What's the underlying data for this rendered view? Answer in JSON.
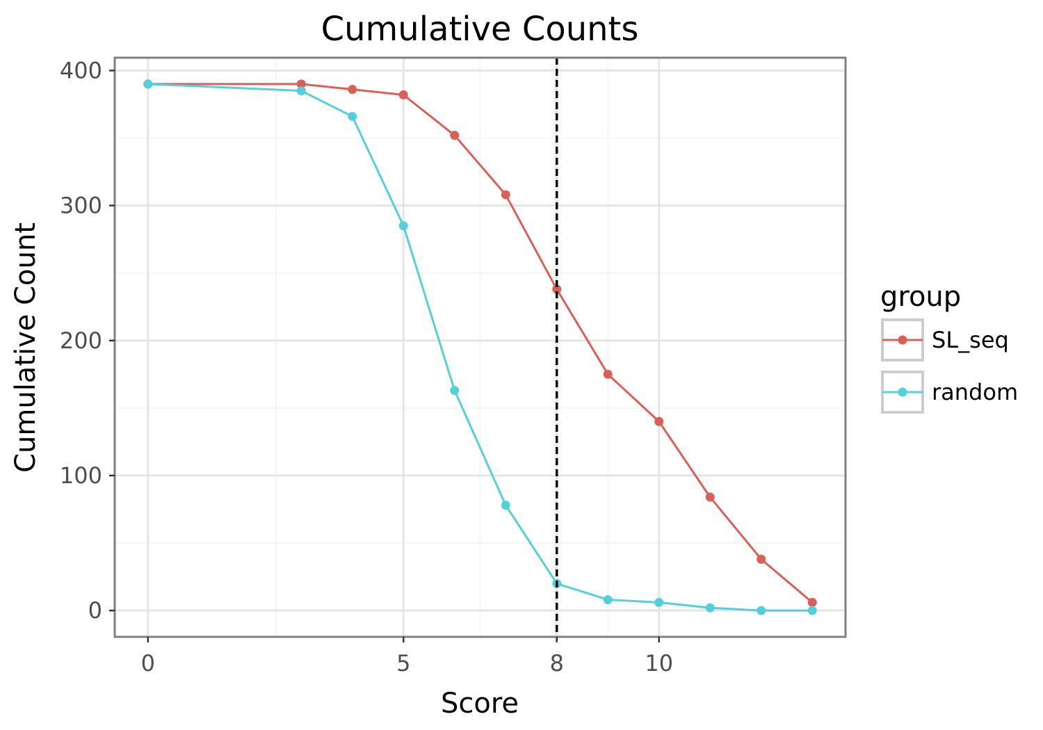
{
  "chart_data": {
    "type": "line",
    "title": "Cumulative Counts",
    "xlabel": "Score",
    "ylabel": "Cumulative Count",
    "xlim": [
      -0.65,
      13.65
    ],
    "ylim": [
      -19.5,
      409.5
    ],
    "x_ticks": [
      0,
      5,
      8,
      10
    ],
    "y_ticks": [
      0,
      100,
      200,
      300,
      400
    ],
    "x_tick_labels": [
      "0",
      "5",
      "8",
      "10"
    ],
    "y_tick_labels": [
      "0",
      "100",
      "200",
      "300",
      "400"
    ],
    "reference_line": {
      "x": 8,
      "style": "dashed",
      "color": "#000000"
    },
    "grid": true,
    "legend": {
      "title": "group",
      "position": "right",
      "entries": [
        "SL_seq",
        "random"
      ]
    },
    "x": [
      0,
      3,
      4,
      5,
      6,
      7,
      8,
      9,
      10,
      11,
      12,
      13
    ],
    "series": [
      {
        "name": "SL_seq",
        "color": "#d95f57",
        "values": [
          390,
          390,
          386,
          382,
          352,
          308,
          238,
          175,
          140,
          84,
          38,
          6
        ]
      },
      {
        "name": "random",
        "color": "#55d0da",
        "values": [
          390,
          385,
          366,
          285,
          163,
          78,
          20,
          8,
          6,
          2,
          0,
          0
        ]
      }
    ]
  }
}
